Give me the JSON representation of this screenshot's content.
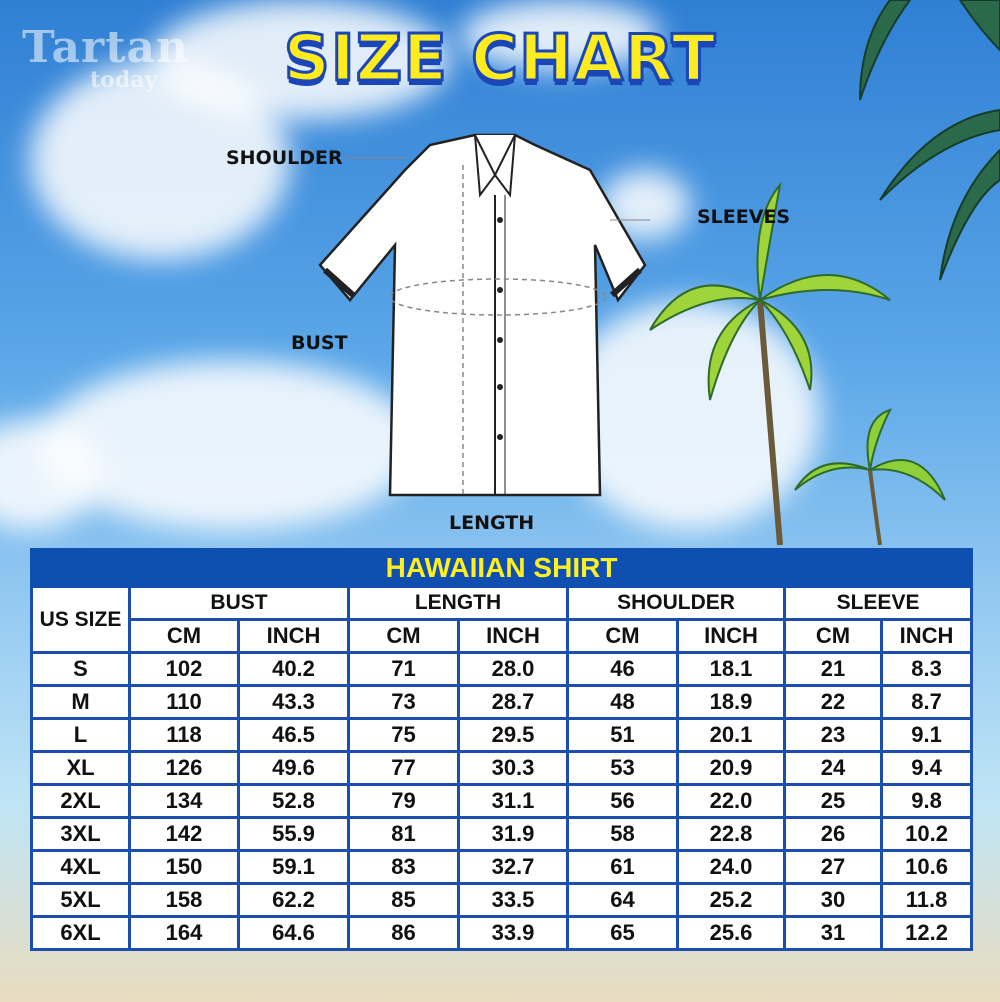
{
  "brand": {
    "name": "Tartan",
    "sub": "today"
  },
  "title": "SIZE CHART",
  "diagram": {
    "labels": {
      "shoulder": "SHOULDER",
      "sleeves": "SLEEVES",
      "bust": "BUST",
      "length": "LENGTH"
    }
  },
  "table": {
    "caption": "HAWAIIAN SHIRT",
    "size_header": "US SIZE",
    "groups": [
      "BUST",
      "LENGTH",
      "SHOULDER",
      "SLEEVE"
    ],
    "units": [
      "CM",
      "INCH",
      "CM",
      "INCH",
      "CM",
      "INCH",
      "CM",
      "INCH"
    ],
    "rows": [
      [
        "S",
        "102",
        "40.2",
        "71",
        "28.0",
        "46",
        "18.1",
        "21",
        "8.3"
      ],
      [
        "M",
        "110",
        "43.3",
        "73",
        "28.7",
        "48",
        "18.9",
        "22",
        "8.7"
      ],
      [
        "L",
        "118",
        "46.5",
        "75",
        "29.5",
        "51",
        "20.1",
        "23",
        "9.1"
      ],
      [
        "XL",
        "126",
        "49.6",
        "77",
        "30.3",
        "53",
        "20.9",
        "24",
        "9.4"
      ],
      [
        "2XL",
        "134",
        "52.8",
        "79",
        "31.1",
        "56",
        "22.0",
        "25",
        "9.8"
      ],
      [
        "3XL",
        "142",
        "55.9",
        "81",
        "31.9",
        "58",
        "22.8",
        "26",
        "10.2"
      ],
      [
        "4XL",
        "150",
        "59.1",
        "83",
        "32.7",
        "61",
        "24.0",
        "27",
        "10.6"
      ],
      [
        "5XL",
        "158",
        "62.2",
        "85",
        "33.5",
        "64",
        "25.2",
        "30",
        "11.8"
      ],
      [
        "6XL",
        "164",
        "64.6",
        "86",
        "33.9",
        "65",
        "25.6",
        "31",
        "12.2"
      ]
    ]
  },
  "colors": {
    "header_bg": "#0f4fb0",
    "header_text": "#ffee22",
    "border": "#1b4fae",
    "title": "#ffec1f"
  }
}
